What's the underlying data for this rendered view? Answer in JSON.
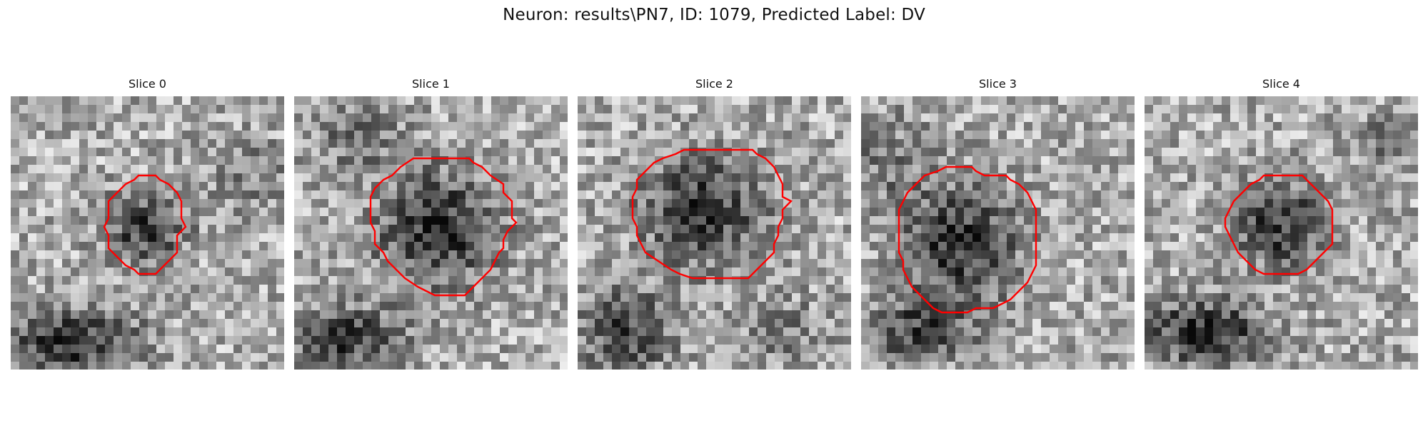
{
  "figure": {
    "title": "Neuron: results\\PN7, ID: 1079, Predicted Label: DV"
  },
  "contour_color": "#ff0000",
  "panels": [
    {
      "label": "Slice 0",
      "contour": [
        [
          179,
          111
        ],
        [
          203,
          111
        ],
        [
          209,
          117
        ],
        [
          221,
          123
        ],
        [
          233,
          135
        ],
        [
          239,
          147
        ],
        [
          239,
          171
        ],
        [
          245,
          183
        ],
        [
          239,
          189
        ],
        [
          233,
          195
        ],
        [
          233,
          219
        ],
        [
          221,
          231
        ],
        [
          209,
          243
        ],
        [
          203,
          249
        ],
        [
          179,
          249
        ],
        [
          173,
          243
        ],
        [
          161,
          237
        ],
        [
          149,
          225
        ],
        [
          137,
          213
        ],
        [
          137,
          195
        ],
        [
          131,
          183
        ],
        [
          137,
          171
        ],
        [
          137,
          147
        ],
        [
          149,
          135
        ],
        [
          161,
          123
        ],
        [
          173,
          117
        ]
      ],
      "dark_regions": [
        {
          "cx": 188,
          "cy": 185,
          "rx": 70,
          "ry": 62,
          "tone": 0.9
        },
        {
          "cx": 85,
          "cy": 345,
          "rx": 120,
          "ry": 55,
          "tone": 1.0
        },
        {
          "cx": 340,
          "cy": 110,
          "rx": 70,
          "ry": 60,
          "tone": 0.35
        }
      ]
    },
    {
      "label": "Slice 1",
      "contour": [
        [
          167,
          87
        ],
        [
          245,
          87
        ],
        [
          251,
          93
        ],
        [
          263,
          99
        ],
        [
          275,
          111
        ],
        [
          293,
          123
        ],
        [
          293,
          135
        ],
        [
          305,
          147
        ],
        [
          305,
          171
        ],
        [
          311,
          177
        ],
        [
          305,
          183
        ],
        [
          299,
          189
        ],
        [
          293,
          201
        ],
        [
          293,
          213
        ],
        [
          287,
          219
        ],
        [
          281,
          231
        ],
        [
          275,
          243
        ],
        [
          263,
          255
        ],
        [
          251,
          267
        ],
        [
          239,
          279
        ],
        [
          197,
          279
        ],
        [
          185,
          273
        ],
        [
          173,
          267
        ],
        [
          155,
          255
        ],
        [
          143,
          243
        ],
        [
          131,
          231
        ],
        [
          125,
          219
        ],
        [
          113,
          207
        ],
        [
          113,
          189
        ],
        [
          107,
          177
        ],
        [
          107,
          141
        ],
        [
          113,
          129
        ],
        [
          125,
          117
        ],
        [
          137,
          111
        ],
        [
          149,
          99
        ]
      ],
      "dark_regions": [
        {
          "cx": 200,
          "cy": 185,
          "rx": 105,
          "ry": 100,
          "tone": 1.0
        },
        {
          "cx": 70,
          "cy": 340,
          "rx": 100,
          "ry": 55,
          "tone": 0.9
        },
        {
          "cx": 90,
          "cy": 60,
          "rx": 80,
          "ry": 55,
          "tone": 0.45
        }
      ]
    },
    {
      "label": "Slice 2",
      "contour": [
        [
          149,
          75
        ],
        [
          245,
          75
        ],
        [
          251,
          81
        ],
        [
          263,
          87
        ],
        [
          275,
          99
        ],
        [
          281,
          111
        ],
        [
          287,
          123
        ],
        [
          287,
          141
        ],
        [
          299,
          147
        ],
        [
          287,
          159
        ],
        [
          287,
          171
        ],
        [
          281,
          183
        ],
        [
          281,
          195
        ],
        [
          275,
          207
        ],
        [
          275,
          219
        ],
        [
          263,
          231
        ],
        [
          251,
          243
        ],
        [
          239,
          255
        ],
        [
          161,
          255
        ],
        [
          143,
          249
        ],
        [
          131,
          243
        ],
        [
          113,
          231
        ],
        [
          95,
          219
        ],
        [
          89,
          207
        ],
        [
          83,
          195
        ],
        [
          83,
          183
        ],
        [
          77,
          171
        ],
        [
          77,
          141
        ],
        [
          83,
          129
        ],
        [
          83,
          117
        ],
        [
          95,
          105
        ],
        [
          107,
          93
        ],
        [
          119,
          87
        ],
        [
          137,
          81
        ]
      ],
      "dark_regions": [
        {
          "cx": 175,
          "cy": 160,
          "rx": 105,
          "ry": 95,
          "tone": 0.95
        },
        {
          "cx": 70,
          "cy": 330,
          "rx": 80,
          "ry": 70,
          "tone": 0.85
        },
        {
          "cx": 290,
          "cy": 330,
          "rx": 90,
          "ry": 60,
          "tone": 0.35
        }
      ]
    },
    {
      "label": "Slice 3",
      "contour": [
        [
          119,
          99
        ],
        [
          155,
          99
        ],
        [
          161,
          105
        ],
        [
          173,
          111
        ],
        [
          203,
          111
        ],
        [
          209,
          117
        ],
        [
          221,
          123
        ],
        [
          233,
          135
        ],
        [
          239,
          147
        ],
        [
          245,
          159
        ],
        [
          245,
          237
        ],
        [
          239,
          249
        ],
        [
          233,
          261
        ],
        [
          221,
          273
        ],
        [
          209,
          285
        ],
        [
          197,
          291
        ],
        [
          185,
          297
        ],
        [
          161,
          297
        ],
        [
          149,
          303
        ],
        [
          113,
          303
        ],
        [
          101,
          297
        ],
        [
          95,
          291
        ],
        [
          83,
          279
        ],
        [
          71,
          267
        ],
        [
          65,
          255
        ],
        [
          59,
          243
        ],
        [
          59,
          231
        ],
        [
          53,
          219
        ],
        [
          53,
          159
        ],
        [
          59,
          147
        ],
        [
          65,
          135
        ],
        [
          77,
          123
        ],
        [
          89,
          111
        ],
        [
          107,
          105
        ]
      ],
      "dark_regions": [
        {
          "cx": 140,
          "cy": 210,
          "rx": 100,
          "ry": 105,
          "tone": 1.0
        },
        {
          "cx": 80,
          "cy": 330,
          "rx": 90,
          "ry": 60,
          "tone": 0.75
        },
        {
          "cx": 40,
          "cy": 90,
          "rx": 70,
          "ry": 80,
          "tone": 0.4
        }
      ]
    },
    {
      "label": "Slice 4",
      "contour": [
        [
          167,
          111
        ],
        [
          221,
          111
        ],
        [
          227,
          117
        ],
        [
          233,
          123
        ],
        [
          245,
          135
        ],
        [
          257,
          147
        ],
        [
          263,
          159
        ],
        [
          263,
          207
        ],
        [
          251,
          219
        ],
        [
          239,
          231
        ],
        [
          227,
          243
        ],
        [
          215,
          249
        ],
        [
          167,
          249
        ],
        [
          155,
          243
        ],
        [
          143,
          231
        ],
        [
          131,
          219
        ],
        [
          125,
          207
        ],
        [
          119,
          195
        ],
        [
          113,
          183
        ],
        [
          113,
          171
        ],
        [
          119,
          159
        ],
        [
          125,
          147
        ],
        [
          137,
          135
        ],
        [
          149,
          123
        ],
        [
          161,
          117
        ]
      ],
      "dark_regions": [
        {
          "cx": 192,
          "cy": 180,
          "rx": 80,
          "ry": 75,
          "tone": 0.95
        },
        {
          "cx": 85,
          "cy": 330,
          "rx": 110,
          "ry": 60,
          "tone": 1.0
        },
        {
          "cx": 330,
          "cy": 60,
          "rx": 60,
          "ry": 50,
          "tone": 0.35
        }
      ]
    }
  ]
}
